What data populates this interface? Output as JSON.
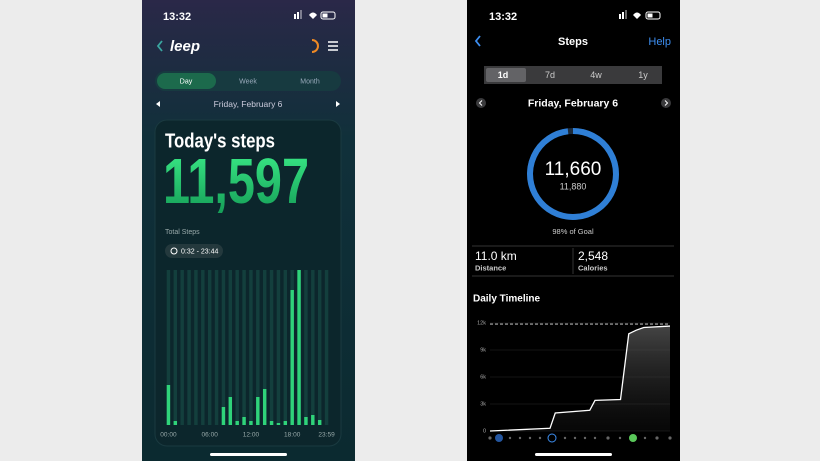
{
  "left_screen": {
    "status_time": "13:32",
    "logo": "leep",
    "tabs": [
      "Day",
      "Week",
      "Month"
    ],
    "date": "Friday, February 6",
    "heading": "Today's steps",
    "steps": "11,597",
    "steps_label": "Total Steps",
    "active_range": "0:32 - 23:44",
    "chart_data": {
      "type": "bar",
      "color": "#2fd37a",
      "categories": [
        "00:00",
        null,
        null,
        null,
        null,
        null,
        "06:00",
        null,
        null,
        null,
        null,
        null,
        "12:00",
        null,
        null,
        null,
        null,
        null,
        "18:00",
        null,
        null,
        null,
        null,
        "23:59"
      ],
      "values": [
        40,
        4,
        0,
        0,
        0,
        0,
        0,
        0,
        18,
        28,
        4,
        8,
        4,
        28,
        36,
        4,
        2,
        4,
        135,
        155,
        8,
        10,
        5,
        0
      ]
    }
  },
  "right_screen": {
    "status_time": "13:32",
    "title": "Steps",
    "help": "Help",
    "tabs": [
      "1d",
      "7d",
      "4w",
      "1y"
    ],
    "date": "Friday, February 6",
    "ring": {
      "value": 11660,
      "label": "11,660",
      "goal": 11880,
      "goal_label": "11,880",
      "percent_label": "98% of Goal"
    },
    "stats": [
      {
        "value": "11.0 km",
        "label": "Distance"
      },
      {
        "value": "2,548",
        "label": "Calories"
      }
    ],
    "section_title": "Daily Timeline",
    "chart_data": {
      "type": "line",
      "color": "#ffffff",
      "x": [
        0,
        8,
        8.7,
        13.3,
        14,
        17.4,
        18.5,
        19.5,
        20.5,
        24
      ],
      "values": [
        0,
        300,
        2000,
        2300,
        3400,
        3500,
        10800,
        11200,
        11500,
        11660
      ],
      "xlim": [
        0,
        24
      ],
      "ylim": [
        0,
        12000
      ],
      "yticks": [
        0,
        {
          "value": 3000,
          "label": "3k"
        },
        {
          "value": 6000,
          "label": "6k"
        },
        {
          "value": 9000,
          "label": "9k"
        },
        {
          "value": 12000,
          "label": "12k"
        }
      ]
    }
  }
}
